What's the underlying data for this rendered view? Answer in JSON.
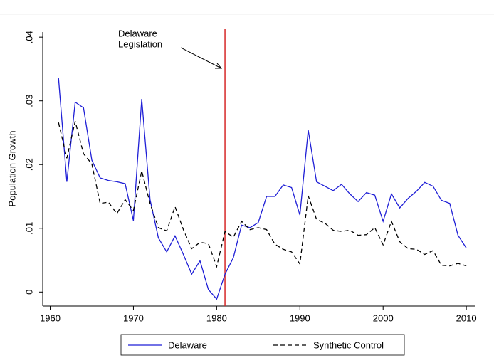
{
  "chart_data": {
    "type": "line",
    "y_label": "Population Growth",
    "annotation": [
      "Delaware",
      "Legislation"
    ],
    "reference_line": {
      "x": 1981,
      "color": "#d62728"
    },
    "x": [
      1961,
      1962,
      1963,
      1964,
      1965,
      1966,
      1967,
      1968,
      1969,
      1970,
      1971,
      1972,
      1973,
      1974,
      1975,
      1976,
      1977,
      1978,
      1979,
      1980,
      1981,
      1982,
      1983,
      1984,
      1985,
      1986,
      1987,
      1988,
      1989,
      1990,
      1991,
      1992,
      1993,
      1994,
      1995,
      1996,
      1997,
      1998,
      1999,
      2000,
      2001,
      2002,
      2003,
      2004,
      2005,
      2006,
      2007,
      2008,
      2009,
      2010
    ],
    "series": [
      {
        "name": "Delaware",
        "color": "#1f1fd6",
        "dash": false,
        "values": [
          0.0336,
          0.0173,
          0.0298,
          0.0289,
          0.0207,
          0.0179,
          0.0175,
          0.0173,
          0.017,
          0.0112,
          0.0303,
          0.0145,
          0.0085,
          0.0063,
          0.0088,
          0.0059,
          0.0028,
          0.0049,
          0.0004,
          -0.0011,
          0.0028,
          0.0054,
          0.0105,
          0.0101,
          0.0109,
          0.015,
          0.015,
          0.0168,
          0.0164,
          0.0121,
          0.0254,
          0.0173,
          0.0166,
          0.0159,
          0.0169,
          0.0154,
          0.0142,
          0.0156,
          0.0152,
          0.0111,
          0.0154,
          0.0132,
          0.0147,
          0.0158,
          0.0172,
          0.0166,
          0.0144,
          0.0139,
          0.0089,
          0.0069
        ]
      },
      {
        "name": "Synthetic Control",
        "color": "#000000",
        "dash": true,
        "values": [
          0.0266,
          0.021,
          0.0268,
          0.0217,
          0.0201,
          0.0139,
          0.0141,
          0.0123,
          0.0145,
          0.0128,
          0.019,
          0.0139,
          0.0101,
          0.0096,
          0.0134,
          0.0098,
          0.0068,
          0.0078,
          0.0076,
          0.004,
          0.0095,
          0.0086,
          0.0111,
          0.0098,
          0.0101,
          0.0098,
          0.0075,
          0.0067,
          0.0063,
          0.0044,
          0.0151,
          0.0114,
          0.0108,
          0.0097,
          0.0095,
          0.0097,
          0.0089,
          0.009,
          0.0101,
          0.0074,
          0.0111,
          0.0079,
          0.0068,
          0.0067,
          0.0059,
          0.0065,
          0.0042,
          0.0041,
          0.0045,
          0.0041
        ]
      }
    ],
    "xlim": [
      1959.1,
      2011.1
    ],
    "xticks": [
      1960,
      1970,
      1980,
      1990,
      2000,
      2010
    ],
    "ylim": [
      -0.0022,
      0.0408
    ],
    "yticks": [
      0,
      {
        "value": 0.01,
        "label": ".01"
      },
      {
        "value": 0.02,
        "label": ".02"
      },
      {
        "value": 0.03,
        "label": ".03"
      },
      {
        "value": 0.04,
        "label": ".04"
      }
    ],
    "legend": "bottom"
  }
}
